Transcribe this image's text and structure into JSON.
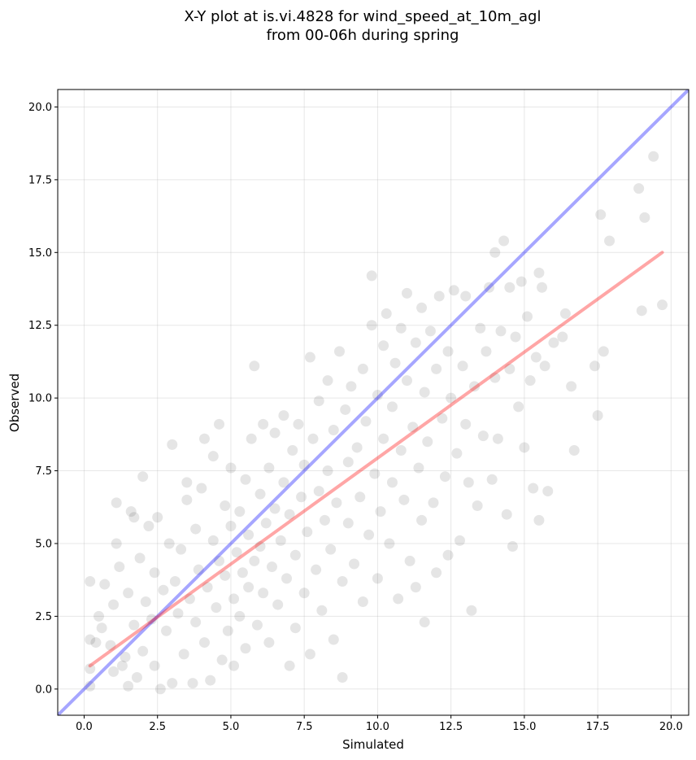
{
  "chart_data": {
    "type": "scatter",
    "title_line1": "X-Y plot at is.vi.4828 for wind_speed_at_10m_agl",
    "title_line2": "from 00-06h during spring",
    "xlabel": "Simulated",
    "ylabel": "Observed",
    "xlim": [
      -0.9,
      20.6
    ],
    "ylim": [
      -0.9,
      20.6
    ],
    "xticks": [
      0.0,
      2.5,
      5.0,
      7.5,
      10.0,
      12.5,
      15.0,
      17.5,
      20.0
    ],
    "yticks": [
      0.0,
      2.5,
      5.0,
      7.5,
      10.0,
      12.5,
      15.0,
      17.5,
      20.0
    ],
    "tick_labels": [
      "0.0",
      "2.5",
      "5.0",
      "7.5",
      "10.0",
      "12.5",
      "15.0",
      "17.5",
      "20.0"
    ],
    "grid": true,
    "point_color": "#000000",
    "point_alpha": 0.1,
    "identity_line": {
      "color": "#0000ff",
      "alpha": 0.35
    },
    "fit_line": {
      "color": "#ff0000",
      "alpha": 0.35,
      "x": [
        0.2,
        19.7
      ],
      "y": [
        0.8,
        15.0
      ]
    },
    "points": [
      [
        0.2,
        0.1
      ],
      [
        0.2,
        0.7
      ],
      [
        0.2,
        1.7
      ],
      [
        0.2,
        3.7
      ],
      [
        0.4,
        1.6
      ],
      [
        0.5,
        2.5
      ],
      [
        0.6,
        2.1
      ],
      [
        0.7,
        3.6
      ],
      [
        0.9,
        1.5
      ],
      [
        1.0,
        0.6
      ],
      [
        1.0,
        2.9
      ],
      [
        1.1,
        6.4
      ],
      [
        1.1,
        5.0
      ],
      [
        1.2,
        4.2
      ],
      [
        1.3,
        0.8
      ],
      [
        1.4,
        1.1
      ],
      [
        1.5,
        0.1
      ],
      [
        1.5,
        3.3
      ],
      [
        1.6,
        6.1
      ],
      [
        1.7,
        5.9
      ],
      [
        1.7,
        2.2
      ],
      [
        1.8,
        0.4
      ],
      [
        1.9,
        4.5
      ],
      [
        2.0,
        1.3
      ],
      [
        2.0,
        7.3
      ],
      [
        2.1,
        3.0
      ],
      [
        2.2,
        5.6
      ],
      [
        2.3,
        2.4
      ],
      [
        2.4,
        0.8
      ],
      [
        2.4,
        4.0
      ],
      [
        2.5,
        5.9
      ],
      [
        2.6,
        0.0
      ],
      [
        2.7,
        3.4
      ],
      [
        2.8,
        2.0
      ],
      [
        2.9,
        5.0
      ],
      [
        3.0,
        0.2
      ],
      [
        3.0,
        8.4
      ],
      [
        3.1,
        3.7
      ],
      [
        3.2,
        2.6
      ],
      [
        3.3,
        4.8
      ],
      [
        3.4,
        1.2
      ],
      [
        3.5,
        6.5
      ],
      [
        3.5,
        7.1
      ],
      [
        3.6,
        3.1
      ],
      [
        3.7,
        0.2
      ],
      [
        3.8,
        5.5
      ],
      [
        3.8,
        2.3
      ],
      [
        3.9,
        4.1
      ],
      [
        4.0,
        6.9
      ],
      [
        4.1,
        1.6
      ],
      [
        4.1,
        8.6
      ],
      [
        4.2,
        3.5
      ],
      [
        4.3,
        0.3
      ],
      [
        4.4,
        5.1
      ],
      [
        4.4,
        8.0
      ],
      [
        4.5,
        2.8
      ],
      [
        4.6,
        9.1
      ],
      [
        4.6,
        4.4
      ],
      [
        4.7,
        1.0
      ],
      [
        4.8,
        6.3
      ],
      [
        4.8,
        3.9
      ],
      [
        4.9,
        2.0
      ],
      [
        5.0,
        5.6
      ],
      [
        5.0,
        7.6
      ],
      [
        5.1,
        3.1
      ],
      [
        5.1,
        0.8
      ],
      [
        5.2,
        4.7
      ],
      [
        5.3,
        6.1
      ],
      [
        5.3,
        2.5
      ],
      [
        5.4,
        4.0
      ],
      [
        5.5,
        7.2
      ],
      [
        5.5,
        1.4
      ],
      [
        5.6,
        3.5
      ],
      [
        5.6,
        5.3
      ],
      [
        5.7,
        8.6
      ],
      [
        5.8,
        4.4
      ],
      [
        5.8,
        11.1
      ],
      [
        5.9,
        2.2
      ],
      [
        6.0,
        6.7
      ],
      [
        6.0,
        4.9
      ],
      [
        6.1,
        9.1
      ],
      [
        6.1,
        3.3
      ],
      [
        6.2,
        5.7
      ],
      [
        6.3,
        7.6
      ],
      [
        6.3,
        1.6
      ],
      [
        6.4,
        4.2
      ],
      [
        6.5,
        6.2
      ],
      [
        6.5,
        8.8
      ],
      [
        6.6,
        2.9
      ],
      [
        6.7,
        5.1
      ],
      [
        6.8,
        7.1
      ],
      [
        6.8,
        9.4
      ],
      [
        6.9,
        3.8
      ],
      [
        7.0,
        6.0
      ],
      [
        7.0,
        0.8
      ],
      [
        7.1,
        8.2
      ],
      [
        7.2,
        4.6
      ],
      [
        7.2,
        2.1
      ],
      [
        7.3,
        9.1
      ],
      [
        7.4,
        6.6
      ],
      [
        7.5,
        3.3
      ],
      [
        7.5,
        7.7
      ],
      [
        7.6,
        5.4
      ],
      [
        7.7,
        11.4
      ],
      [
        7.7,
        1.2
      ],
      [
        7.8,
        8.6
      ],
      [
        7.9,
        4.1
      ],
      [
        8.0,
        6.8
      ],
      [
        8.0,
        9.9
      ],
      [
        8.1,
        2.7
      ],
      [
        8.2,
        5.8
      ],
      [
        8.3,
        7.5
      ],
      [
        8.3,
        10.6
      ],
      [
        8.4,
        4.8
      ],
      [
        8.5,
        8.9
      ],
      [
        8.5,
        1.7
      ],
      [
        8.6,
        6.4
      ],
      [
        8.7,
        11.6
      ],
      [
        8.8,
        3.7
      ],
      [
        8.8,
        0.4
      ],
      [
        8.9,
        9.6
      ],
      [
        9.0,
        5.7
      ],
      [
        9.0,
        7.8
      ],
      [
        9.1,
        10.4
      ],
      [
        9.2,
        4.3
      ],
      [
        9.3,
        8.3
      ],
      [
        9.4,
        6.6
      ],
      [
        9.5,
        11.0
      ],
      [
        9.5,
        3.0
      ],
      [
        9.6,
        9.2
      ],
      [
        9.7,
        5.3
      ],
      [
        9.8,
        12.5
      ],
      [
        9.8,
        14.2
      ],
      [
        9.9,
        7.4
      ],
      [
        10.0,
        10.1
      ],
      [
        10.0,
        3.8
      ],
      [
        10.1,
        6.1
      ],
      [
        10.2,
        11.8
      ],
      [
        10.2,
        8.6
      ],
      [
        10.3,
        12.9
      ],
      [
        10.4,
        5.0
      ],
      [
        10.5,
        9.7
      ],
      [
        10.5,
        7.1
      ],
      [
        10.6,
        11.2
      ],
      [
        10.7,
        3.1
      ],
      [
        10.8,
        12.4
      ],
      [
        10.8,
        8.2
      ],
      [
        10.9,
        6.5
      ],
      [
        11.0,
        10.6
      ],
      [
        11.0,
        13.6
      ],
      [
        11.1,
        4.4
      ],
      [
        11.2,
        9.0
      ],
      [
        11.3,
        11.9
      ],
      [
        11.3,
        3.5
      ],
      [
        11.4,
        7.6
      ],
      [
        11.5,
        13.1
      ],
      [
        11.5,
        5.8
      ],
      [
        11.6,
        10.2
      ],
      [
        11.6,
        2.3
      ],
      [
        11.7,
        8.5
      ],
      [
        11.8,
        12.3
      ],
      [
        11.9,
        6.4
      ],
      [
        12.0,
        11.0
      ],
      [
        12.0,
        4.0
      ],
      [
        12.1,
        13.5
      ],
      [
        12.2,
        9.3
      ],
      [
        12.3,
        7.3
      ],
      [
        12.4,
        11.6
      ],
      [
        12.4,
        4.6
      ],
      [
        12.5,
        10.0
      ],
      [
        12.6,
        13.7
      ],
      [
        12.7,
        8.1
      ],
      [
        12.8,
        5.1
      ],
      [
        12.9,
        11.1
      ],
      [
        13.0,
        9.1
      ],
      [
        13.0,
        13.5
      ],
      [
        13.1,
        7.1
      ],
      [
        13.2,
        2.7
      ],
      [
        13.3,
        10.4
      ],
      [
        13.4,
        6.3
      ],
      [
        13.5,
        12.4
      ],
      [
        13.6,
        8.7
      ],
      [
        13.7,
        11.6
      ],
      [
        13.8,
        13.8
      ],
      [
        13.9,
        7.2
      ],
      [
        14.0,
        10.7
      ],
      [
        14.0,
        15.0
      ],
      [
        14.1,
        8.6
      ],
      [
        14.2,
        12.3
      ],
      [
        14.3,
        15.4
      ],
      [
        14.4,
        6.0
      ],
      [
        14.5,
        11.0
      ],
      [
        14.5,
        13.8
      ],
      [
        14.6,
        4.9
      ],
      [
        14.7,
        12.1
      ],
      [
        14.8,
        9.7
      ],
      [
        14.9,
        14.0
      ],
      [
        15.0,
        8.3
      ],
      [
        15.1,
        12.8
      ],
      [
        15.2,
        10.6
      ],
      [
        15.3,
        6.9
      ],
      [
        15.4,
        11.4
      ],
      [
        15.5,
        14.3
      ],
      [
        15.5,
        5.8
      ],
      [
        15.6,
        13.8
      ],
      [
        15.7,
        11.1
      ],
      [
        15.8,
        6.8
      ],
      [
        16.0,
        11.9
      ],
      [
        16.3,
        12.1
      ],
      [
        16.4,
        12.9
      ],
      [
        16.6,
        10.4
      ],
      [
        16.7,
        8.2
      ],
      [
        17.4,
        11.1
      ],
      [
        17.5,
        9.4
      ],
      [
        17.6,
        16.3
      ],
      [
        17.7,
        11.6
      ],
      [
        17.9,
        15.4
      ],
      [
        18.9,
        17.2
      ],
      [
        19.0,
        13.0
      ],
      [
        19.1,
        16.2
      ],
      [
        19.4,
        18.3
      ],
      [
        19.7,
        13.2
      ]
    ]
  }
}
